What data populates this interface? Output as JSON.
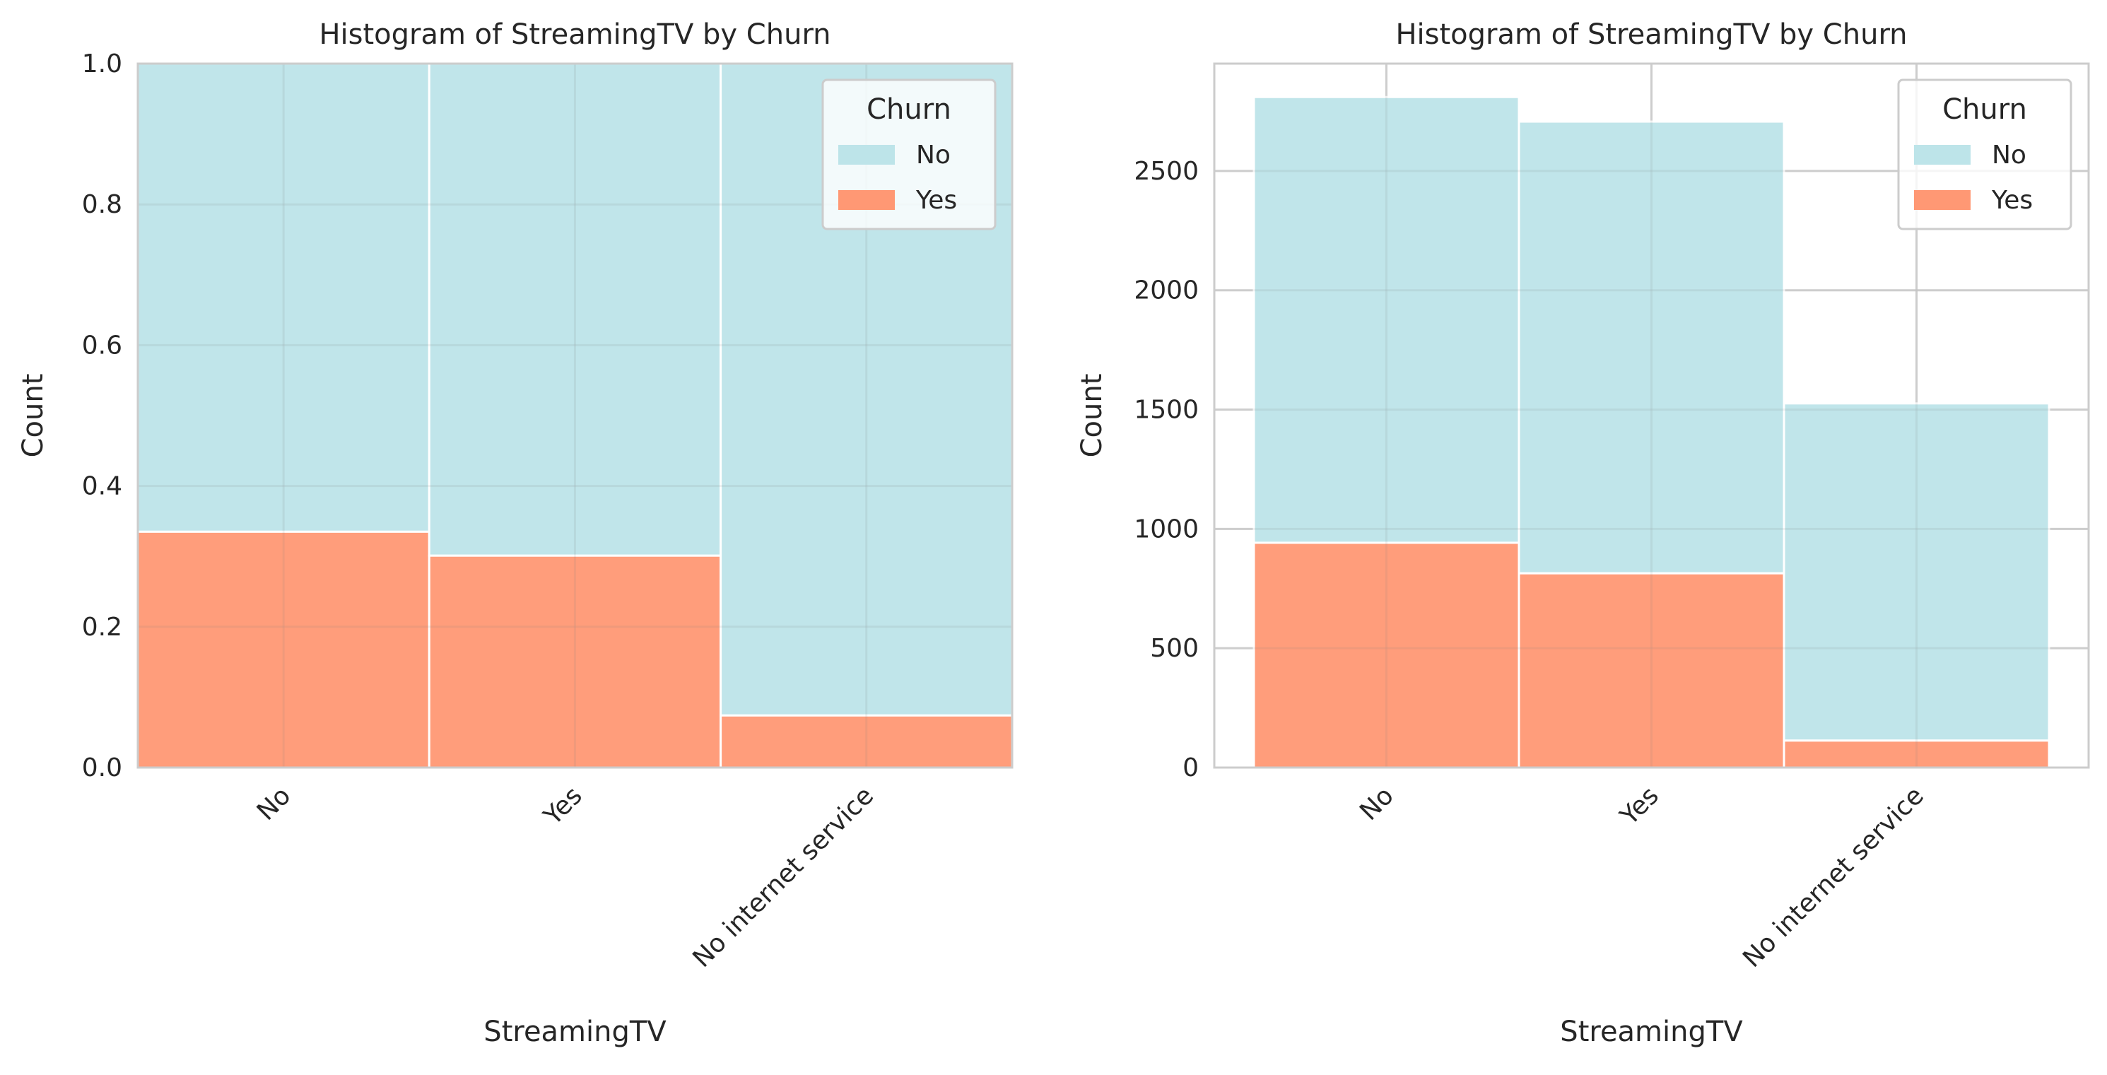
{
  "chart_data": [
    {
      "type": "bar",
      "stacked": true,
      "normalized": true,
      "title": "Histogram of StreamingTV by Churn",
      "xlabel": "StreamingTV",
      "ylabel": "Count",
      "categories": [
        "No",
        "Yes",
        "No internet service"
      ],
      "series": [
        {
          "name": "Yes",
          "values": [
            0.335,
            0.301,
            0.074
          ]
        },
        {
          "name": "No",
          "values": [
            0.665,
            0.699,
            0.926
          ]
        }
      ],
      "ylim": [
        0,
        1.0
      ],
      "yticks": [
        "0.0",
        "0.2",
        "0.4",
        "0.6",
        "0.8",
        "1.0"
      ],
      "legend": {
        "title": "Churn",
        "entries": [
          "No",
          "Yes"
        ],
        "placement": "top-right"
      },
      "grid": true
    },
    {
      "type": "bar",
      "stacked": true,
      "normalized": false,
      "title": "Histogram of StreamingTV by Churn",
      "xlabel": "StreamingTV",
      "ylabel": "Count",
      "categories": [
        "No",
        "Yes",
        "No internet service"
      ],
      "series": [
        {
          "name": "Yes",
          "values": [
            942,
            814,
            113
          ]
        },
        {
          "name": "No",
          "values": [
            1868,
            1893,
            1413
          ]
        }
      ],
      "ylim": [
        0,
        2950
      ],
      "yticks": [
        "0",
        "500",
        "1000",
        "1500",
        "2000",
        "2500"
      ],
      "legend": {
        "title": "Churn",
        "entries": [
          "No",
          "Yes"
        ],
        "placement": "top-right"
      },
      "grid": true
    }
  ],
  "colors": {
    "No": "#bde4e9",
    "Yes": "#ff9874",
    "grid": "#d6d6d6",
    "spine": "#cccccc",
    "text": "#262626"
  }
}
